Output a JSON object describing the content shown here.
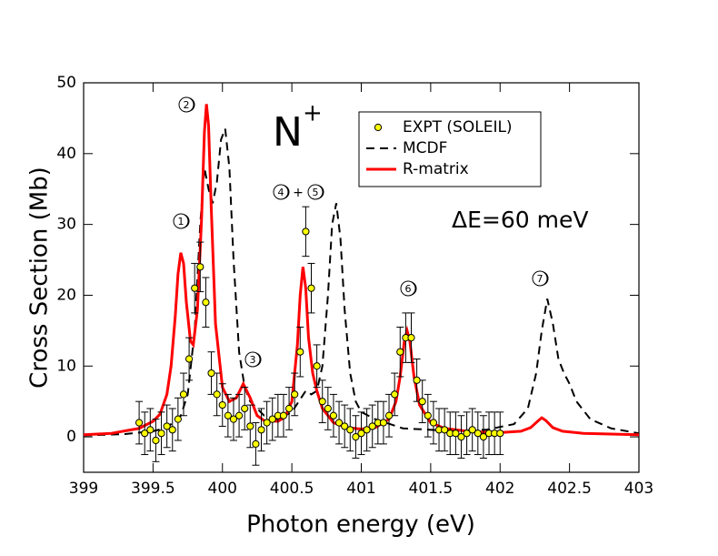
{
  "chart_data": {
    "type": "scatter",
    "title": "N",
    "title_superscript": "+",
    "x_label": "Photon energy (eV)",
    "y_label": "Cross Section (Mb)",
    "xlim": [
      399,
      403
    ],
    "xticks": [
      399,
      399.5,
      400,
      400.5,
      401,
      401.5,
      402,
      402.5,
      403
    ],
    "ylim": [
      -5,
      50
    ],
    "yticks": [
      0,
      10,
      20,
      30,
      40,
      50
    ],
    "legend": "upper right",
    "annotations": [
      "ΔE=60 meV",
      "+"
    ],
    "peak_labels": [
      "1",
      "2",
      "3",
      "4",
      "5",
      "6",
      "7"
    ],
    "series": [
      {
        "name": "EXPT (SOLEIL)",
        "kind": "points",
        "color": "#ffff00",
        "x": [
          399.4,
          399.44,
          399.48,
          399.52,
          399.56,
          399.6,
          399.64,
          399.68,
          399.72,
          399.76,
          399.8,
          399.84,
          399.88,
          399.92,
          399.96,
          400.0,
          400.04,
          400.08,
          400.12,
          400.16,
          400.2,
          400.24,
          400.28,
          400.32,
          400.36,
          400.4,
          400.44,
          400.48,
          400.52,
          400.56,
          400.6,
          400.64,
          400.68,
          400.72,
          400.76,
          400.8,
          400.84,
          400.88,
          400.92,
          400.96,
          401.0,
          401.04,
          401.08,
          401.12,
          401.16,
          401.2,
          401.24,
          401.28,
          401.32,
          401.36,
          401.4,
          401.44,
          401.48,
          401.52,
          401.56,
          401.6,
          401.64,
          401.68,
          401.72,
          401.76,
          401.8,
          401.84,
          401.88,
          401.92,
          401.96,
          402.0
        ],
        "values": [
          2,
          0.5,
          1,
          -0.5,
          0.5,
          1.5,
          1,
          2.5,
          6,
          11,
          21,
          24,
          19,
          9,
          6,
          4.5,
          3,
          2.5,
          3,
          4,
          1.5,
          -1,
          1,
          2,
          2.5,
          3,
          3,
          4,
          6,
          12,
          29,
          21,
          10,
          5,
          4,
          3,
          2,
          1.5,
          1,
          0,
          0.5,
          1,
          1.5,
          2,
          2,
          3,
          6,
          12,
          14,
          14,
          8,
          5,
          3,
          2,
          1,
          1,
          0.5,
          0.5,
          0,
          0.5,
          1,
          0.5,
          0,
          0.5,
          0.5,
          0.5
        ],
        "errors": [
          3,
          3,
          3,
          3,
          3,
          3,
          3,
          3,
          3,
          3,
          3.5,
          3.5,
          3.5,
          3,
          3,
          3,
          3,
          3,
          3,
          3,
          3,
          3,
          3,
          3,
          3,
          3,
          3,
          3,
          3,
          3.5,
          3.5,
          3.5,
          3,
          3,
          3,
          3,
          3,
          3,
          3,
          3,
          3,
          3,
          3,
          3,
          3,
          3,
          3,
          3.5,
          3.5,
          3.5,
          3,
          3,
          3,
          3,
          3,
          3,
          3,
          3,
          3,
          3,
          3,
          3,
          3,
          3,
          3,
          3
        ]
      },
      {
        "name": "MCDF",
        "kind": "dashed",
        "color": "#000000",
        "x": [
          399.0,
          399.3,
          399.5,
          399.6,
          399.7,
          399.75,
          399.8,
          399.84,
          399.87,
          399.9,
          399.93,
          399.96,
          399.99,
          400.02,
          400.05,
          400.08,
          400.12,
          400.16,
          400.2,
          400.3,
          400.4,
          400.5,
          400.55,
          400.6,
          400.64,
          400.68,
          400.72,
          400.76,
          400.79,
          400.82,
          400.85,
          400.88,
          400.92,
          400.96,
          401.0,
          401.1,
          401.3,
          401.6,
          401.9,
          402.1,
          402.2,
          402.26,
          402.3,
          402.34,
          402.38,
          402.42,
          402.46,
          402.5,
          402.55,
          402.65,
          402.8,
          403.0
        ],
        "values": [
          0.2,
          0.4,
          0.8,
          1.3,
          3,
          6,
          15,
          30,
          38,
          35,
          33,
          36,
          42,
          43.5,
          38,
          25,
          12,
          7,
          5,
          3,
          2.5,
          3.5,
          5,
          6.5,
          6,
          6.5,
          10,
          20,
          30,
          33,
          28,
          18,
          9,
          5,
          3.5,
          2.5,
          1.2,
          0.9,
          1,
          1.8,
          4,
          9,
          15,
          19.5,
          16,
          11,
          9,
          7.5,
          5,
          2.5,
          1.2,
          0.5
        ]
      },
      {
        "name": "R-matrix",
        "kind": "solid",
        "color": "#ff0000",
        "x": [
          399.0,
          399.2,
          399.4,
          399.5,
          399.55,
          399.6,
          399.63,
          399.66,
          399.68,
          399.7,
          399.72,
          399.74,
          399.77,
          399.79,
          399.82,
          399.85,
          399.87,
          399.885,
          399.9,
          399.92,
          399.95,
          400.0,
          400.05,
          400.1,
          400.15,
          400.2,
          400.25,
          400.3,
          400.4,
          400.45,
          400.5,
          400.54,
          400.56,
          400.58,
          400.6,
          400.62,
          400.65,
          400.68,
          400.72,
          400.8,
          400.9,
          401.0,
          401.1,
          401.2,
          401.25,
          401.28,
          401.31,
          401.33,
          401.35,
          401.38,
          401.42,
          401.5,
          401.6,
          401.8,
          402.0,
          402.15,
          402.22,
          402.27,
          402.3,
          402.33,
          402.38,
          402.45,
          402.6,
          402.8,
          403.0
        ],
        "values": [
          0.3,
          0.5,
          1.2,
          2.2,
          3.2,
          6,
          10,
          17,
          23,
          26,
          24.5,
          19,
          13.5,
          13,
          18,
          31,
          43,
          47,
          44,
          32,
          16,
          7,
          5,
          5.5,
          7.5,
          5.5,
          3,
          2.3,
          2.2,
          2.8,
          5,
          13,
          20,
          24,
          21,
          14,
          9,
          6.5,
          4,
          2,
          1.3,
          1.1,
          1.3,
          2.5,
          5,
          8.5,
          13.5,
          15,
          13.5,
          8.5,
          4.5,
          2,
          1.2,
          0.7,
          0.6,
          0.8,
          1.3,
          2.2,
          2.7,
          2.3,
          1.3,
          0.8,
          0.5,
          0.4,
          0.3
        ]
      }
    ]
  }
}
